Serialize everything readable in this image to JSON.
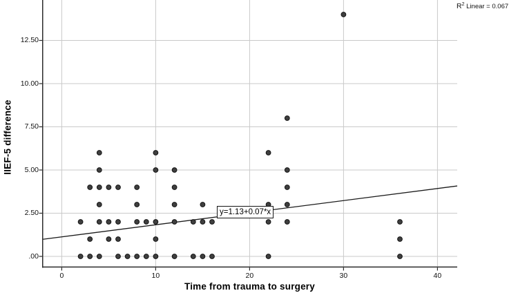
{
  "chart_data": {
    "type": "scatter",
    "xlabel": "Time from trauma to surgery",
    "ylabel": "IIEF-5 difference",
    "x_ticks": [
      {
        "value": 0,
        "label": "0"
      },
      {
        "value": 10,
        "label": "10"
      },
      {
        "value": 20,
        "label": "20"
      },
      {
        "value": 30,
        "label": "30"
      },
      {
        "value": 40,
        "label": "40"
      }
    ],
    "y_ticks": [
      {
        "value": 0,
        "label": ".00"
      },
      {
        "value": 2.5,
        "label": "2.50"
      },
      {
        "value": 5,
        "label": "5.00"
      },
      {
        "value": 7.5,
        "label": "7.50"
      },
      {
        "value": 10,
        "label": "10.00"
      },
      {
        "value": 12.5,
        "label": "12.50"
      }
    ],
    "xlim": [
      -2.1,
      42.1
    ],
    "ylim": [
      -0.64,
      15.5
    ],
    "grid": true,
    "legend": "none",
    "points": [
      [
        2,
        0
      ],
      [
        3,
        0
      ],
      [
        4,
        0
      ],
      [
        6,
        0
      ],
      [
        7,
        0
      ],
      [
        8,
        0
      ],
      [
        9,
        0
      ],
      [
        10,
        0
      ],
      [
        12,
        0
      ],
      [
        14,
        0
      ],
      [
        15,
        0
      ],
      [
        16,
        0
      ],
      [
        22,
        0
      ],
      [
        36,
        0
      ],
      [
        3,
        1
      ],
      [
        5,
        1
      ],
      [
        6,
        1
      ],
      [
        10,
        1
      ],
      [
        36,
        1
      ],
      [
        2,
        2
      ],
      [
        4,
        2
      ],
      [
        5,
        2
      ],
      [
        6,
        2
      ],
      [
        8,
        2
      ],
      [
        9,
        2
      ],
      [
        10,
        2
      ],
      [
        12,
        2
      ],
      [
        14,
        2
      ],
      [
        15,
        2
      ],
      [
        16,
        2
      ],
      [
        22,
        2
      ],
      [
        24,
        2
      ],
      [
        36,
        2
      ],
      [
        4,
        3
      ],
      [
        8,
        3
      ],
      [
        12,
        3
      ],
      [
        15,
        3
      ],
      [
        22,
        3
      ],
      [
        24,
        3
      ],
      [
        3,
        4
      ],
      [
        4,
        4
      ],
      [
        5,
        4
      ],
      [
        6,
        4
      ],
      [
        8,
        4
      ],
      [
        12,
        4
      ],
      [
        24,
        4
      ],
      [
        4,
        5
      ],
      [
        10,
        5
      ],
      [
        12,
        5
      ],
      [
        24,
        5
      ],
      [
        4,
        6
      ],
      [
        10,
        6
      ],
      [
        22,
        6
      ],
      [
        24,
        8
      ],
      [
        30,
        14
      ]
    ],
    "regression": {
      "slope": 0.07,
      "intercept": 1.13,
      "equation_label": "y=1.13+0.07*x"
    },
    "annotation": {
      "r2_prefix": "R",
      "r2_sup": "2",
      "r2_rest": " Linear = 0.067"
    },
    "colors": {
      "point_fill": "#3f3f3f",
      "point_stroke": "#141414",
      "grid": "#c9c9c9",
      "axis": "#2b2b2b",
      "line": "#1a1a1a"
    }
  }
}
